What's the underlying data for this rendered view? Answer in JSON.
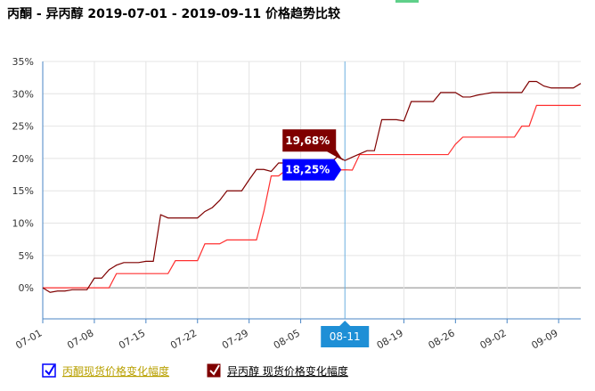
{
  "chart_data": {
    "type": "line",
    "title": "丙酮 - 异丙醇 2019-07-01 - 2019-09-11 价格趋势比较",
    "categories": [
      "07-01",
      null,
      null,
      null,
      null,
      null,
      null,
      "07-08",
      null,
      null,
      null,
      null,
      null,
      null,
      "07-15",
      null,
      null,
      null,
      null,
      null,
      null,
      "07-22",
      null,
      null,
      null,
      null,
      null,
      null,
      "07-29",
      null,
      null,
      null,
      null,
      null,
      null,
      "08-05",
      null,
      null,
      null,
      null,
      null,
      "08-11",
      null,
      null,
      null,
      null,
      null,
      null,
      null,
      "08-19",
      null,
      null,
      null,
      null,
      null,
      null,
      "08-26",
      null,
      null,
      null,
      null,
      null,
      null,
      "09-02",
      null,
      null,
      null,
      null,
      null,
      null,
      "09-09",
      null,
      null,
      null
    ],
    "crosshair_index": 41,
    "series": [
      {
        "name": "丙酮现货价格变化幅度",
        "color": "#ff3030",
        "values": [
          0,
          0,
          0,
          0,
          0,
          0,
          0,
          0,
          0,
          0,
          2.2,
          2.2,
          2.2,
          2.2,
          2.2,
          2.2,
          2.2,
          2.2,
          4.2,
          4.2,
          4.2,
          4.2,
          6.8,
          6.8,
          6.8,
          7.4,
          7.4,
          7.4,
          7.4,
          7.4,
          11.8,
          17.3,
          17.3,
          18.2,
          18.2,
          18.2,
          18.2,
          18.2,
          18.2,
          18.2,
          18.2,
          18.25,
          18.2,
          20.6,
          20.6,
          20.6,
          20.6,
          20.6,
          20.6,
          20.6,
          20.6,
          20.6,
          20.6,
          20.6,
          20.6,
          20.6,
          22.2,
          23.3,
          23.3,
          23.3,
          23.3,
          23.3,
          23.3,
          23.3,
          23.3,
          25,
          25,
          28.2,
          28.2,
          28.2,
          28.2,
          28.2,
          28.2,
          28.2
        ],
        "value_labels": [
          null,
          null,
          null,
          null,
          null,
          null,
          null,
          null,
          null,
          null,
          null,
          null,
          null,
          null,
          null,
          null,
          null,
          null,
          null,
          null,
          null,
          null,
          null,
          null,
          null,
          null,
          null,
          null,
          null,
          null,
          null,
          null,
          null,
          null,
          null,
          null,
          null,
          null,
          null,
          null,
          null,
          "18,25%",
          null,
          null,
          null,
          null,
          null,
          null,
          null,
          null,
          null,
          null,
          null,
          null,
          null,
          null,
          null,
          null,
          null,
          null,
          null,
          null,
          null,
          null,
          null,
          null,
          null,
          null,
          null,
          null,
          null,
          null,
          null,
          null
        ],
        "label_color": "#0000ff"
      },
      {
        "name": "异丙醇 现货价格变化幅度",
        "color": "#7f0000",
        "values": [
          0,
          -0.7,
          -0.5,
          -0.5,
          -0.3,
          -0.3,
          -0.3,
          1.5,
          1.5,
          2.8,
          3.5,
          3.9,
          3.9,
          3.9,
          4.1,
          4.1,
          11.3,
          10.8,
          10.8,
          10.8,
          10.8,
          10.8,
          11.8,
          12.4,
          13.5,
          15,
          15,
          15,
          16.7,
          18.3,
          18.3,
          18,
          19.3,
          19.3,
          19.3,
          19.3,
          19.3,
          19.3,
          19.3,
          19.3,
          20.3,
          19.68,
          20.2,
          20.7,
          21.2,
          21.2,
          26,
          26,
          26,
          25.8,
          28.8,
          28.8,
          28.8,
          28.8,
          30.2,
          30.2,
          30.2,
          29.5,
          29.5,
          29.8,
          30,
          30.2,
          30.2,
          30.2,
          30.2,
          30.2,
          31.9,
          31.9,
          31.2,
          30.9,
          30.9,
          30.9,
          30.9,
          31.6
        ],
        "value_labels": [
          null,
          null,
          null,
          null,
          null,
          null,
          null,
          null,
          null,
          null,
          null,
          null,
          null,
          null,
          null,
          null,
          null,
          null,
          null,
          null,
          null,
          null,
          null,
          null,
          null,
          null,
          null,
          null,
          null,
          null,
          null,
          null,
          null,
          null,
          null,
          null,
          null,
          null,
          null,
          null,
          null,
          "19,68%",
          null,
          null,
          null,
          null,
          null,
          null,
          null,
          null,
          null,
          null,
          null,
          null,
          null,
          null,
          null,
          null,
          null,
          null,
          null,
          null,
          null,
          null,
          null,
          null,
          null,
          null,
          null,
          null,
          null,
          null,
          null,
          null
        ],
        "label_color": "#7f0000"
      }
    ],
    "ylim": [
      -4.8,
      35
    ],
    "yticks": [
      {
        "value": 0,
        "label": "0%"
      },
      {
        "value": 5,
        "label": "5%"
      },
      {
        "value": 10,
        "label": "10%"
      },
      {
        "value": 15,
        "label": "15%"
      },
      {
        "value": 20,
        "label": "20%"
      },
      {
        "value": 25,
        "label": "25%"
      },
      {
        "value": 30,
        "label": "30%"
      },
      {
        "value": 35,
        "label": "35%"
      }
    ],
    "grid": true
  }
}
